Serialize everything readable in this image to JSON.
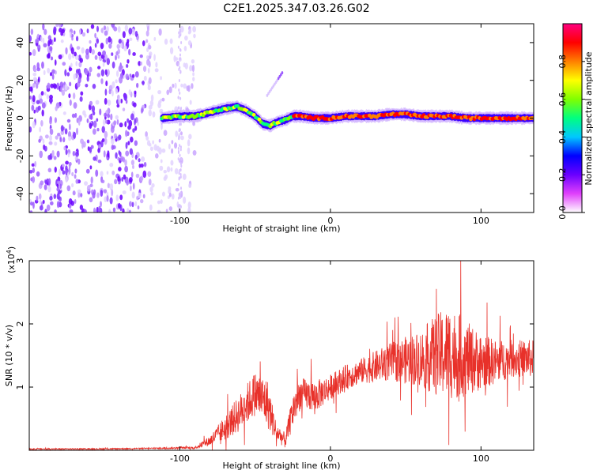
{
  "title": "C2E1.2025.347.03.26.G02",
  "chart_data": [
    {
      "type": "heatmap",
      "xlabel": "Height of straight line (km)",
      "ylabel": "Frequency (Hz)",
      "xlim": [
        -200,
        135
      ],
      "ylim": [
        -50,
        50
      ],
      "xticks": [
        -100,
        0,
        100
      ],
      "xtick_labels": [
        "-100",
        "0",
        "100"
      ],
      "yticks": [
        -40,
        -20,
        0,
        20,
        40
      ],
      "ytick_labels": [
        "-40",
        "-20",
        "0",
        "20",
        "40"
      ],
      "colorbar": {
        "label": "Normalized spectral amplitude",
        "range": [
          0,
          1
        ],
        "ticks": [
          "0.0",
          "0.2",
          "0.4",
          "0.6",
          "0.8"
        ],
        "tick_values": [
          0,
          0.2,
          0.4,
          0.6,
          0.8
        ],
        "colormap": [
          "#ffffff",
          "#e040fb",
          "#6a00ff",
          "#0000ff",
          "#00c8ff",
          "#00ff80",
          "#80ff00",
          "#ffff00",
          "#ff8000",
          "#ff0000",
          "#ff0080"
        ]
      },
      "ridge": {
        "x": [
          -112,
          -100,
          -90,
          -80,
          -70,
          -62,
          -56,
          -50,
          -45,
          -40,
          -35,
          -30,
          -25,
          -20,
          -10,
          0,
          10,
          20,
          30,
          40,
          50,
          60,
          70,
          80,
          90,
          100,
          110,
          120,
          135
        ],
        "y": [
          0,
          1,
          1,
          3,
          5,
          6,
          4,
          1,
          -3,
          -4,
          -2,
          -1,
          1,
          1,
          0,
          0,
          1,
          1,
          1,
          2,
          2,
          1,
          1,
          1,
          0,
          0,
          0,
          0,
          0
        ]
      },
      "noise_region_x": [
        -200,
        -90
      ],
      "echo_segment": {
        "x": [
          -42,
          -32
        ],
        "y": [
          12,
          24
        ]
      }
    },
    {
      "type": "line",
      "xlabel": "Height of straight line (km)",
      "ylabel": "SNR (10 * v/v)",
      "scale_label": "(x10",
      "scale_exp": "4",
      "scale_close": ")",
      "xlim": [
        -200,
        135
      ],
      "ylim": [
        0,
        3
      ],
      "xticks": [
        -100,
        0,
        100
      ],
      "xtick_labels": [
        "-100",
        "0",
        "100"
      ],
      "yticks": [
        1,
        2,
        3
      ],
      "ytick_labels": [
        "1",
        "2",
        "3"
      ],
      "series_color": "#e8312a",
      "envelope": {
        "x": [
          -200,
          -160,
          -120,
          -90,
          -80,
          -70,
          -60,
          -50,
          -42,
          -36,
          -30,
          -24,
          -20,
          -10,
          0,
          10,
          20,
          40,
          60,
          70,
          80,
          90,
          100,
          110,
          120,
          135
        ],
        "mean": [
          0.02,
          0.02,
          0.03,
          0.04,
          0.15,
          0.35,
          0.6,
          0.9,
          0.75,
          0.3,
          0.15,
          0.7,
          0.9,
          0.85,
          1.0,
          1.15,
          1.25,
          1.4,
          1.45,
          1.5,
          1.55,
          1.45,
          1.4,
          1.4,
          1.45,
          1.45
        ],
        "amp": [
          0.01,
          0.01,
          0.01,
          0.02,
          0.08,
          0.2,
          0.3,
          0.35,
          0.4,
          0.15,
          0.12,
          0.3,
          0.25,
          0.25,
          0.2,
          0.2,
          0.2,
          0.3,
          0.45,
          0.65,
          0.75,
          0.6,
          0.45,
          0.35,
          0.3,
          0.3
        ]
      }
    }
  ]
}
